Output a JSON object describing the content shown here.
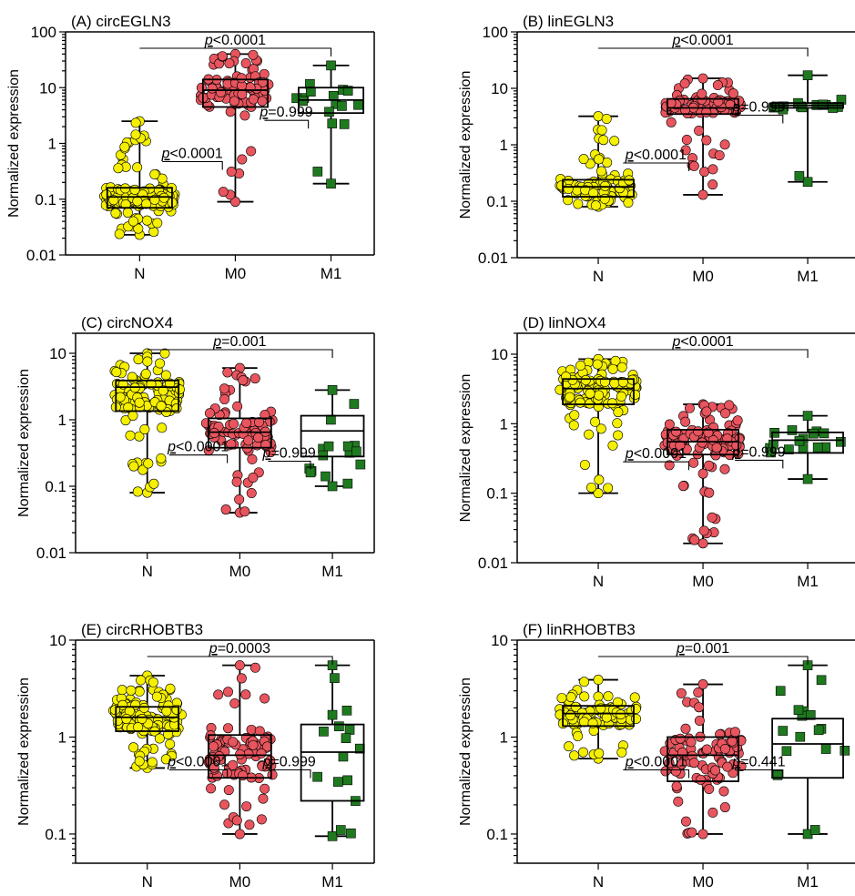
{
  "chart_data": [
    {
      "type": "box",
      "panel": "A",
      "title": "(A) circEGLN3",
      "ylabel": "Normalized expression",
      "yscale": "log",
      "ylim": [
        0.01,
        100
      ],
      "yticks": [
        "0.01",
        "0.1",
        "1",
        "10",
        "100"
      ],
      "categories": [
        "N",
        "M0",
        "M1"
      ],
      "series": [
        {
          "name": "N",
          "color": "#f5f000",
          "marker": "circle",
          "min": 0.023,
          "q1": 0.07,
          "median": 0.11,
          "q3": 0.16,
          "max": 2.5,
          "n": 140
        },
        {
          "name": "M0",
          "color": "#e8555e",
          "marker": "circle",
          "min": 0.09,
          "q1": 4.5,
          "median": 9,
          "q3": 14,
          "max": 40,
          "n": 90
        },
        {
          "name": "M1",
          "color": "#1f7a1f",
          "marker": "square",
          "min": 0.19,
          "q1": 3.5,
          "median": 6,
          "q3": 10,
          "max": 25,
          "n": 17
        }
      ],
      "annotations": [
        {
          "prefix": "p",
          "text": "<0.0001",
          "from": "N",
          "to": "M1"
        },
        {
          "prefix": "p",
          "text": "<0.0001",
          "from": "N",
          "to": "M0"
        },
        {
          "prefix": "p",
          "text": "=0.999",
          "from": "M0",
          "to": "M1"
        }
      ]
    },
    {
      "type": "box",
      "panel": "B",
      "title": "(B) linEGLN3",
      "ylabel": "Normalized expression",
      "yscale": "log",
      "ylim": [
        0.01,
        100
      ],
      "yticks": [
        "0.01",
        "0.1",
        "1",
        "10",
        "100"
      ],
      "categories": [
        "N",
        "M0",
        "M1"
      ],
      "series": [
        {
          "name": "N",
          "color": "#f5f000",
          "marker": "circle",
          "min": 0.08,
          "q1": 0.12,
          "median": 0.18,
          "q3": 0.24,
          "max": 3.2,
          "n": 80
        },
        {
          "name": "M0",
          "color": "#e8555e",
          "marker": "circle",
          "min": 0.13,
          "q1": 3.5,
          "median": 4.5,
          "q3": 6.5,
          "max": 15,
          "n": 90
        },
        {
          "name": "M1",
          "color": "#1f7a1f",
          "marker": "square",
          "min": 0.22,
          "q1": 4.5,
          "median": 5,
          "q3": 5.5,
          "max": 17,
          "n": 17
        }
      ],
      "annotations": [
        {
          "prefix": "p",
          "text": "<0.0001",
          "from": "N",
          "to": "M1"
        },
        {
          "prefix": "p",
          "text": "<0.0001",
          "from": "N",
          "to": "M0"
        },
        {
          "prefix": "p",
          "text": "=0.999",
          "from": "M0",
          "to": "M1"
        }
      ]
    },
    {
      "type": "box",
      "panel": "C",
      "title": "(C) circNOX4",
      "ylabel": "Normalized expression",
      "yscale": "log",
      "ylim": [
        0.01,
        20
      ],
      "yticks": [
        "0.01",
        "0.1",
        "1",
        "10"
      ],
      "categories": [
        "N",
        "M0",
        "M1"
      ],
      "series": [
        {
          "name": "N",
          "color": "#f5f000",
          "marker": "circle",
          "min": 0.08,
          "q1": 1.35,
          "median": 3.1,
          "q3": 3.9,
          "max": 10,
          "n": 110
        },
        {
          "name": "M0",
          "color": "#e8555e",
          "marker": "circle",
          "min": 0.04,
          "q1": 0.38,
          "median": 0.65,
          "q3": 1.05,
          "max": 6,
          "n": 90
        },
        {
          "name": "M1",
          "color": "#1f7a1f",
          "marker": "square",
          "min": 0.1,
          "q1": 0.28,
          "median": 0.68,
          "q3": 1.15,
          "max": 2.8,
          "n": 17
        }
      ],
      "annotations": [
        {
          "prefix": "p",
          "text": "=0.001",
          "from": "N",
          "to": "M1"
        },
        {
          "prefix": "p",
          "text": "<0.0001",
          "from": "N",
          "to": "M0"
        },
        {
          "prefix": "p",
          "text": "=0.999",
          "from": "M0",
          "to": "M1"
        }
      ]
    },
    {
      "type": "box",
      "panel": "D",
      "title": "(D) linNOX4",
      "ylabel": "Normalized expression",
      "yscale": "log",
      "ylim": [
        0.01,
        20
      ],
      "yticks": [
        "0.01",
        "0.1",
        "1",
        "10"
      ],
      "categories": [
        "N",
        "M0",
        "M1"
      ],
      "series": [
        {
          "name": "N",
          "color": "#f5f000",
          "marker": "circle",
          "min": 0.1,
          "q1": 1.9,
          "median": 3.2,
          "q3": 4.4,
          "max": 8.5,
          "n": 120
        },
        {
          "name": "M0",
          "color": "#e8555e",
          "marker": "circle",
          "min": 0.019,
          "q1": 0.36,
          "median": 0.55,
          "q3": 0.82,
          "max": 1.9,
          "n": 120
        },
        {
          "name": "M1",
          "color": "#1f7a1f",
          "marker": "square",
          "min": 0.16,
          "q1": 0.38,
          "median": 0.58,
          "q3": 0.75,
          "max": 1.3,
          "n": 17
        }
      ],
      "annotations": [
        {
          "prefix": "p",
          "text": "<0.0001",
          "from": "N",
          "to": "M1"
        },
        {
          "prefix": "p",
          "text": "<0.0001",
          "from": "N",
          "to": "M0"
        },
        {
          "prefix": "p",
          "text": "=0.999",
          "from": "M0",
          "to": "M1"
        }
      ]
    },
    {
      "type": "box",
      "panel": "E",
      "title": "(E) circRHOBTB3",
      "ylabel": "Normalized expression",
      "yscale": "log",
      "ylim": [
        0.05,
        10
      ],
      "yticks": [
        "0.1",
        "1",
        "10"
      ],
      "categories": [
        "N",
        "M0",
        "M1"
      ],
      "series": [
        {
          "name": "N",
          "color": "#f5f000",
          "marker": "circle",
          "min": 0.48,
          "q1": 1.15,
          "median": 1.6,
          "q3": 2.05,
          "max": 4.3,
          "n": 130
        },
        {
          "name": "M0",
          "color": "#e8555e",
          "marker": "circle",
          "min": 0.1,
          "q1": 0.38,
          "median": 0.65,
          "q3": 1.05,
          "max": 5.5,
          "n": 95
        },
        {
          "name": "M1",
          "color": "#1f7a1f",
          "marker": "square",
          "min": 0.095,
          "q1": 0.22,
          "median": 0.7,
          "q3": 1.35,
          "max": 5.5,
          "n": 17
        }
      ],
      "annotations": [
        {
          "prefix": "p",
          "text": "=0.0003",
          "from": "N",
          "to": "M1"
        },
        {
          "prefix": "p",
          "text": "<0.0001",
          "from": "N",
          "to": "M0"
        },
        {
          "prefix": "p",
          "text": "=0.999",
          "from": "M0",
          "to": "M1"
        }
      ]
    },
    {
      "type": "box",
      "panel": "F",
      "title": "(F) linRHOBTB3",
      "ylabel": "Normalized expression",
      "yscale": "log",
      "ylim": [
        0.05,
        10
      ],
      "yticks": [
        "0.1",
        "1",
        "10"
      ],
      "categories": [
        "N",
        "M0",
        "M1"
      ],
      "series": [
        {
          "name": "N",
          "color": "#f5f000",
          "marker": "circle",
          "min": 0.6,
          "q1": 1.3,
          "median": 1.75,
          "q3": 2.1,
          "max": 3.9,
          "n": 90
        },
        {
          "name": "M0",
          "color": "#e8555e",
          "marker": "circle",
          "min": 0.1,
          "q1": 0.35,
          "median": 0.65,
          "q3": 1.0,
          "max": 3.5,
          "n": 90
        },
        {
          "name": "M1",
          "color": "#1f7a1f",
          "marker": "square",
          "min": 0.1,
          "q1": 0.38,
          "median": 0.85,
          "q3": 1.55,
          "max": 5.5,
          "n": 17
        }
      ],
      "annotations": [
        {
          "prefix": "p",
          "text": "=0.001",
          "from": "N",
          "to": "M1"
        },
        {
          "prefix": "p",
          "text": "<0.0001",
          "from": "N",
          "to": "M0"
        },
        {
          "prefix": "p",
          "text": "=0.441",
          "from": "M0",
          "to": "M1"
        }
      ]
    }
  ]
}
